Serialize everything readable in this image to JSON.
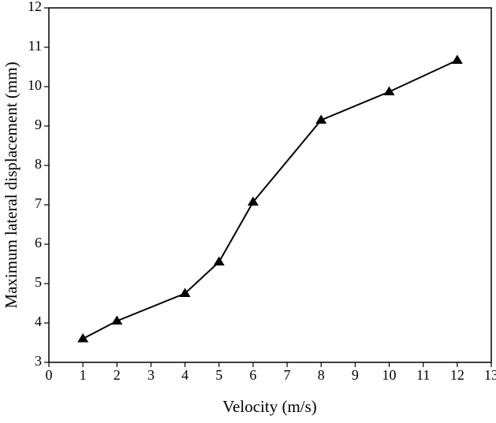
{
  "chart_data": {
    "type": "line",
    "x_label": "Velocity (m/s)",
    "y_label": "Maximum lateral displacement (mm)",
    "series": [
      {
        "x": [
          1,
          2,
          4,
          5,
          6,
          8,
          10,
          12
        ],
        "values": [
          3.6,
          4.05,
          4.75,
          5.55,
          7.07,
          9.15,
          9.87,
          10.67
        ],
        "color": "#000000",
        "marker": "triangle"
      }
    ],
    "xlim": [
      0,
      13
    ],
    "xticks": [
      0,
      1,
      2,
      3,
      4,
      5,
      6,
      7,
      8,
      9,
      10,
      11,
      12,
      13
    ],
    "ylim": [
      3,
      12
    ],
    "yticks": [
      3,
      4,
      5,
      6,
      7,
      8,
      9,
      10,
      11,
      12
    ],
    "grid": false
  }
}
